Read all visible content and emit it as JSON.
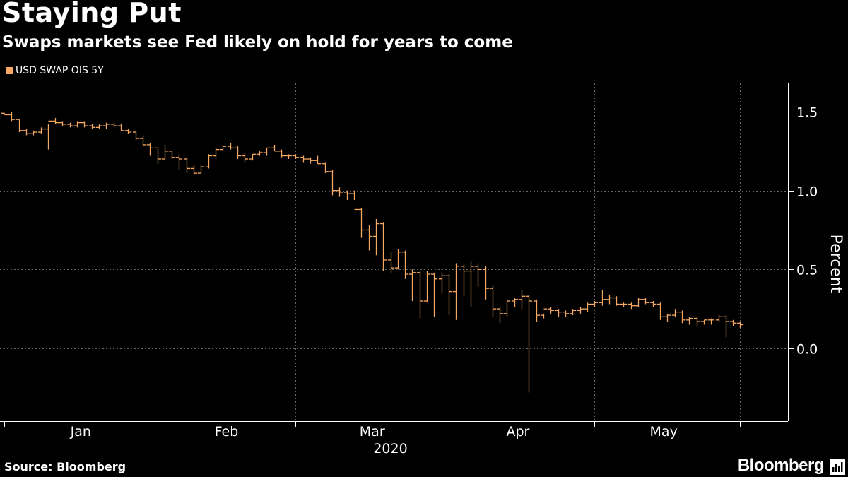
{
  "header": {
    "title": "Staying Put",
    "subtitle": "Swaps markets see Fed likely on hold for years to come"
  },
  "footer": {
    "source": "Source: Bloomberg",
    "brand": "Bloomberg"
  },
  "colors": {
    "background": "#000000",
    "series": "#f6a862",
    "grid": "#666666",
    "text": "#ffffff"
  },
  "chart_data": {
    "type": "bar",
    "style": "ohlc",
    "title": "Staying Put",
    "subtitle": "Swaps markets see Fed likely on hold for years to come",
    "xlabel": "2020",
    "ylabel": "Percent",
    "ylim": [
      -0.45,
      1.65
    ],
    "yticks": [
      1.5,
      1.0,
      0.5,
      0.0
    ],
    "ytick_labels": [
      "1.5",
      "1.0",
      "0.5",
      "0.0"
    ],
    "x_unit": "trading day index (0 = Dec 30, 2019)",
    "xlim": [
      0,
      106
    ],
    "month_boundaries": [
      0,
      21,
      40,
      60,
      81,
      101
    ],
    "month_labels": [
      {
        "label": "Jan",
        "pos": 10.5
      },
      {
        "label": "Feb",
        "pos": 30.5
      },
      {
        "label": "Mar",
        "pos": 50.5
      },
      {
        "label": "Apr",
        "pos": 70.5
      },
      {
        "label": "May",
        "pos": 90.5
      }
    ],
    "year_label": {
      "label": "2020",
      "pos": 53
    },
    "grid": true,
    "legend": {
      "position": "top-left",
      "entries": [
        "USD SWAP OIS 5Y"
      ]
    },
    "series": [
      {
        "name": "USD SWAP OIS 5Y",
        "bars": [
          [
            1.49,
            1.49,
            1.48,
            1.48
          ],
          [
            1.48,
            1.5,
            1.44,
            1.45
          ],
          [
            1.45,
            1.45,
            1.37,
            1.38
          ],
          [
            1.38,
            1.39,
            1.35,
            1.36
          ],
          [
            1.36,
            1.38,
            1.35,
            1.37
          ],
          [
            1.37,
            1.4,
            1.36,
            1.39
          ],
          [
            1.39,
            1.42,
            1.26,
            1.44
          ],
          [
            1.44,
            1.46,
            1.42,
            1.43
          ],
          [
            1.43,
            1.44,
            1.41,
            1.42
          ],
          [
            1.42,
            1.43,
            1.4,
            1.41
          ],
          [
            1.41,
            1.44,
            1.4,
            1.43
          ],
          [
            1.43,
            1.44,
            1.4,
            1.41
          ],
          [
            1.41,
            1.42,
            1.39,
            1.4
          ],
          [
            1.4,
            1.42,
            1.39,
            1.41
          ],
          [
            1.41,
            1.43,
            1.39,
            1.42
          ],
          [
            1.42,
            1.43,
            1.4,
            1.41
          ],
          [
            1.41,
            1.42,
            1.38,
            1.38
          ],
          [
            1.38,
            1.39,
            1.36,
            1.37
          ],
          [
            1.37,
            1.38,
            1.32,
            1.33
          ],
          [
            1.33,
            1.35,
            1.28,
            1.29
          ],
          [
            1.29,
            1.3,
            1.22,
            1.27
          ],
          [
            1.27,
            1.27,
            1.17,
            1.2
          ],
          [
            1.2,
            1.29,
            1.19,
            1.25
          ],
          [
            1.25,
            1.25,
            1.2,
            1.21
          ],
          [
            1.21,
            1.23,
            1.13,
            1.2
          ],
          [
            1.2,
            1.21,
            1.11,
            1.14
          ],
          [
            1.14,
            1.16,
            1.1,
            1.11
          ],
          [
            1.11,
            1.16,
            1.11,
            1.15
          ],
          [
            1.15,
            1.23,
            1.14,
            1.22
          ],
          [
            1.22,
            1.27,
            1.2,
            1.26
          ],
          [
            1.26,
            1.29,
            1.25,
            1.28
          ],
          [
            1.28,
            1.3,
            1.26,
            1.27
          ],
          [
            1.27,
            1.28,
            1.2,
            1.22
          ],
          [
            1.22,
            1.24,
            1.18,
            1.2
          ],
          [
            1.2,
            1.23,
            1.19,
            1.23
          ],
          [
            1.23,
            1.25,
            1.22,
            1.24
          ],
          [
            1.24,
            1.27,
            1.22,
            1.27
          ],
          [
            1.27,
            1.29,
            1.25,
            1.25
          ],
          [
            1.25,
            1.26,
            1.21,
            1.22
          ],
          [
            1.22,
            1.23,
            1.2,
            1.22
          ],
          [
            1.22,
            1.23,
            1.2,
            1.21
          ],
          [
            1.21,
            1.22,
            1.18,
            1.2
          ],
          [
            1.2,
            1.21,
            1.17,
            1.19
          ],
          [
            1.19,
            1.22,
            1.17,
            1.17
          ],
          [
            1.17,
            1.18,
            1.11,
            1.12
          ],
          [
            1.12,
            1.13,
            0.97,
            1.0
          ],
          [
            1.0,
            1.02,
            0.96,
            0.99
          ],
          [
            0.99,
            1.0,
            0.94,
            0.98
          ],
          [
            0.98,
            1.0,
            0.94,
            0.88
          ],
          [
            0.88,
            0.89,
            0.7,
            0.75
          ],
          [
            0.75,
            0.78,
            0.62,
            0.71
          ],
          [
            0.71,
            0.82,
            0.59,
            0.79
          ],
          [
            0.79,
            0.8,
            0.49,
            0.56
          ],
          [
            0.56,
            0.61,
            0.48,
            0.51
          ],
          [
            0.51,
            0.63,
            0.5,
            0.61
          ],
          [
            0.61,
            0.62,
            0.44,
            0.47
          ],
          [
            0.47,
            0.5,
            0.3,
            0.48
          ],
          [
            0.48,
            0.49,
            0.19,
            0.3
          ],
          [
            0.3,
            0.49,
            0.29,
            0.47
          ],
          [
            0.47,
            0.48,
            0.2,
            0.44
          ],
          [
            0.44,
            0.48,
            0.35,
            0.46
          ],
          [
            0.46,
            0.47,
            0.21,
            0.36
          ],
          [
            0.36,
            0.54,
            0.18,
            0.52
          ],
          [
            0.52,
            0.53,
            0.33,
            0.49
          ],
          [
            0.49,
            0.55,
            0.26,
            0.52
          ],
          [
            0.52,
            0.54,
            0.39,
            0.5
          ],
          [
            0.5,
            0.52,
            0.31,
            0.38
          ],
          [
            0.38,
            0.4,
            0.2,
            0.25
          ],
          [
            0.25,
            0.26,
            0.16,
            0.22
          ],
          [
            0.22,
            0.31,
            0.2,
            0.3
          ],
          [
            0.3,
            0.32,
            0.26,
            0.31
          ],
          [
            0.31,
            0.37,
            0.25,
            0.33
          ],
          [
            0.33,
            0.34,
            -0.28,
            0.3
          ],
          [
            0.3,
            0.31,
            0.17,
            0.21
          ],
          [
            0.21,
            0.22,
            0.19,
            0.25
          ],
          [
            0.25,
            0.26,
            0.22,
            0.24
          ],
          [
            0.24,
            0.25,
            0.2,
            0.23
          ],
          [
            0.23,
            0.24,
            0.2,
            0.22
          ],
          [
            0.22,
            0.25,
            0.21,
            0.24
          ],
          [
            0.24,
            0.26,
            0.22,
            0.25
          ],
          [
            0.25,
            0.29,
            0.23,
            0.28
          ],
          [
            0.28,
            0.3,
            0.26,
            0.29
          ],
          [
            0.29,
            0.37,
            0.27,
            0.31
          ],
          [
            0.31,
            0.34,
            0.28,
            0.32
          ],
          [
            0.32,
            0.33,
            0.27,
            0.28
          ],
          [
            0.28,
            0.29,
            0.26,
            0.28
          ],
          [
            0.28,
            0.29,
            0.25,
            0.27
          ],
          [
            0.27,
            0.32,
            0.26,
            0.31
          ],
          [
            0.31,
            0.32,
            0.28,
            0.29
          ],
          [
            0.29,
            0.3,
            0.26,
            0.28
          ],
          [
            0.28,
            0.29,
            0.18,
            0.2
          ],
          [
            0.2,
            0.22,
            0.17,
            0.21
          ],
          [
            0.21,
            0.25,
            0.2,
            0.23
          ],
          [
            0.23,
            0.24,
            0.16,
            0.18
          ],
          [
            0.18,
            0.2,
            0.15,
            0.19
          ],
          [
            0.19,
            0.2,
            0.14,
            0.17
          ],
          [
            0.17,
            0.18,
            0.15,
            0.18
          ],
          [
            0.18,
            0.19,
            0.15,
            0.18
          ],
          [
            0.18,
            0.21,
            0.17,
            0.2
          ],
          [
            0.2,
            0.21,
            0.07,
            0.17
          ],
          [
            0.17,
            0.18,
            0.14,
            0.16
          ],
          [
            0.16,
            0.17,
            0.13,
            0.15
          ]
        ]
      }
    ]
  }
}
